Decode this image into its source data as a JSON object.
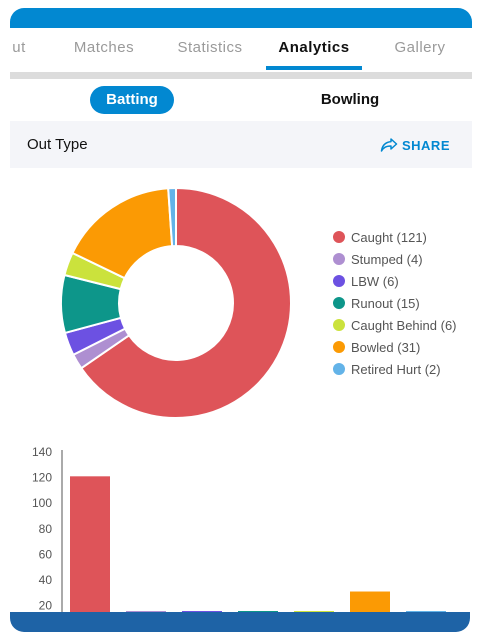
{
  "tabs": [
    {
      "label": "ut",
      "active": false
    },
    {
      "label": "Matches",
      "active": false
    },
    {
      "label": "Statistics",
      "active": false
    },
    {
      "label": "Analytics",
      "active": true
    },
    {
      "label": "Gallery",
      "active": false
    }
  ],
  "toggle": {
    "batting_label": "Batting",
    "bowling_label": "Bowling",
    "selected": "Batting"
  },
  "section": {
    "title": "Out Type",
    "share_label": "SHARE"
  },
  "colors": {
    "accent": "#0288d1",
    "header_bg": "#f4f5f9"
  },
  "chart_data": [
    {
      "type": "pie",
      "subtype": "donut",
      "categories": [
        "Caught",
        "Stumped",
        "LBW",
        "Runout",
        "Caught Behind",
        "Bowled",
        "Retired Hurt"
      ],
      "values": [
        121,
        4,
        6,
        15,
        6,
        31,
        2
      ],
      "legend_labels": [
        "Caught (121)",
        "Stumped (4)",
        "LBW (6)",
        "Runout (15)",
        "Caught Behind (6)",
        "Bowled (31)",
        "Retired Hurt (2)"
      ],
      "colors": [
        "#de5459",
        "#ae8fd1",
        "#6c51e2",
        "#0d968a",
        "#cbe23c",
        "#fb9a04",
        "#63b3e8"
      ],
      "legend_position": "right"
    },
    {
      "type": "bar",
      "categories": [
        "Caught",
        "Stumped",
        "LBW",
        "Runout",
        "Caught Behind",
        "Bowled",
        "Retired Hurt"
      ],
      "values": [
        121,
        4,
        6,
        15,
        6,
        31,
        2
      ],
      "colors": [
        "#de5459",
        "#ae8fd1",
        "#6c51e2",
        "#0d968a",
        "#cbe23c",
        "#fb9a04",
        "#63b3e8"
      ],
      "yticks": [
        "140",
        "120",
        "100",
        "80",
        "60",
        "40",
        "20"
      ],
      "ylim": [
        0,
        140
      ],
      "grid": false
    }
  ]
}
